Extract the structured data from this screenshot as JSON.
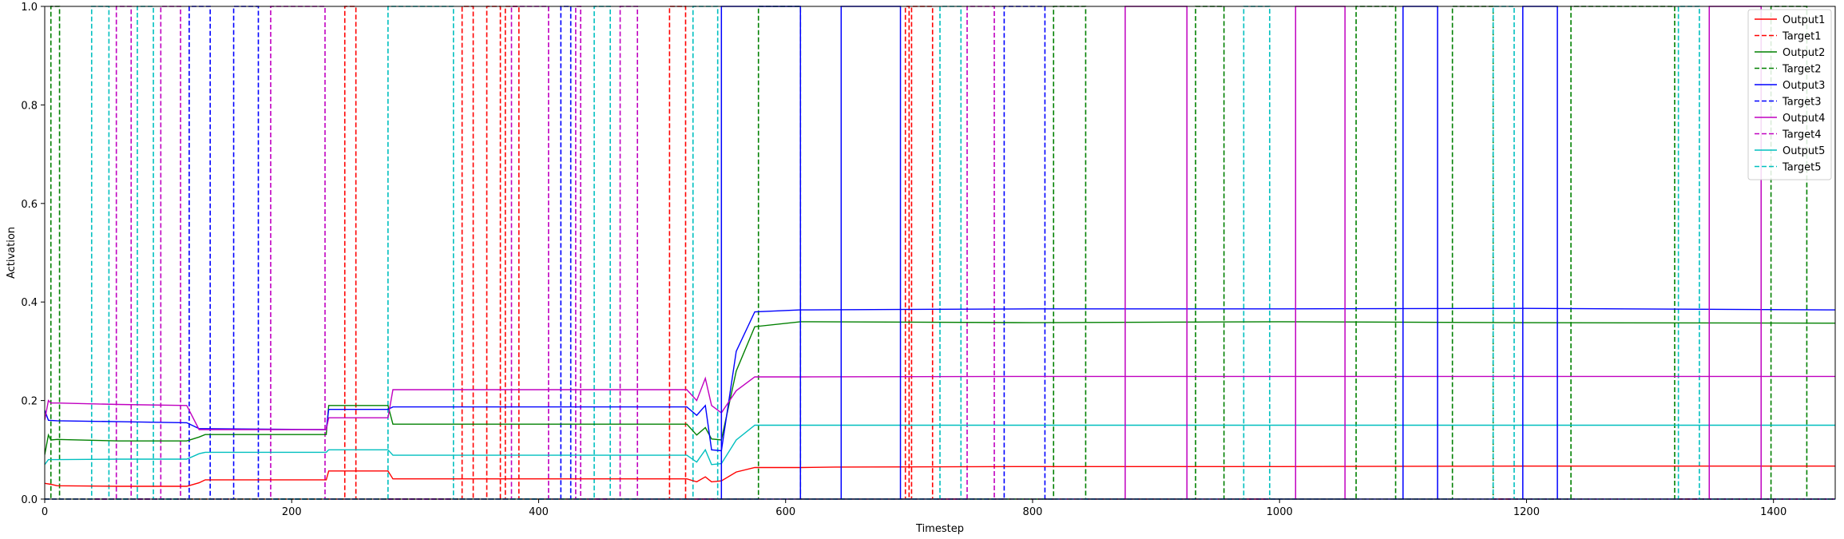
{
  "chart_data": {
    "type": "line",
    "xlabel": "Timestep",
    "ylabel": "Activation",
    "xlim": [
      0,
      1450
    ],
    "ylim": [
      0,
      1.0
    ],
    "xticks": [
      0,
      200,
      400,
      600,
      800,
      1000,
      1200,
      1400
    ],
    "yticks": [
      0.0,
      0.2,
      0.4,
      0.6,
      0.8,
      1.0
    ],
    "xtick_labels": [
      "0",
      "200",
      "400",
      "600",
      "800",
      "1000",
      "1200",
      "1400"
    ],
    "ytick_labels": [
      "0.0",
      "0.2",
      "0.4",
      "0.6",
      "0.8",
      "1.0"
    ],
    "legend_position": "top-right",
    "series": [
      {
        "name": "Output1",
        "color": "#ff0000",
        "style": "solid",
        "points": [
          [
            0,
            0.032
          ],
          [
            5,
            0.03
          ],
          [
            10,
            0.027
          ],
          [
            60,
            0.026
          ],
          [
            115,
            0.026
          ],
          [
            125,
            0.033
          ],
          [
            130,
            0.039
          ],
          [
            228,
            0.039
          ],
          [
            230,
            0.057
          ],
          [
            278,
            0.057
          ],
          [
            282,
            0.041
          ],
          [
            520,
            0.041
          ],
          [
            528,
            0.035
          ],
          [
            535,
            0.045
          ],
          [
            540,
            0.035
          ],
          [
            548,
            0.037
          ],
          [
            560,
            0.055
          ],
          [
            575,
            0.064
          ],
          [
            612,
            0.064
          ],
          [
            640,
            0.065
          ],
          [
            800,
            0.066
          ],
          [
            1000,
            0.066
          ],
          [
            1200,
            0.067
          ],
          [
            1450,
            0.067
          ]
        ]
      },
      {
        "name": "Target1",
        "color": "#ff0000",
        "style": "dashed",
        "pulses": [
          [
            243,
            252
          ],
          [
            338,
            347
          ],
          [
            358,
            369
          ],
          [
            373,
            384
          ],
          [
            506,
            519
          ],
          [
            697,
            700
          ],
          [
            702,
            719
          ]
        ]
      },
      {
        "name": "Output2",
        "color": "#008000",
        "style": "solid",
        "points": [
          [
            0,
            0.09
          ],
          [
            3,
            0.13
          ],
          [
            5,
            0.12
          ],
          [
            10,
            0.121
          ],
          [
            60,
            0.118
          ],
          [
            115,
            0.118
          ],
          [
            125,
            0.126
          ],
          [
            130,
            0.131
          ],
          [
            228,
            0.131
          ],
          [
            230,
            0.19
          ],
          [
            278,
            0.19
          ],
          [
            282,
            0.152
          ],
          [
            520,
            0.152
          ],
          [
            528,
            0.13
          ],
          [
            535,
            0.145
          ],
          [
            540,
            0.122
          ],
          [
            548,
            0.12
          ],
          [
            560,
            0.26
          ],
          [
            575,
            0.35
          ],
          [
            612,
            0.36
          ],
          [
            800,
            0.358
          ],
          [
            1000,
            0.36
          ],
          [
            1200,
            0.358
          ],
          [
            1450,
            0.357
          ]
        ]
      },
      {
        "name": "Target2",
        "color": "#008000",
        "style": "dashed",
        "pulses": [
          [
            5,
            12
          ],
          [
            578,
            612
          ],
          [
            817,
            843
          ],
          [
            932,
            955
          ],
          [
            1062,
            1094
          ],
          [
            1140,
            1173
          ],
          [
            1236,
            1320
          ],
          [
            1398,
            1427
          ]
        ]
      },
      {
        "name": "Output3",
        "color": "#0000ff",
        "style": "solid",
        "points": [
          [
            0,
            0.18
          ],
          [
            3,
            0.16
          ],
          [
            10,
            0.159
          ],
          [
            60,
            0.157
          ],
          [
            115,
            0.155
          ],
          [
            125,
            0.143
          ],
          [
            130,
            0.143
          ],
          [
            228,
            0.141
          ],
          [
            230,
            0.182
          ],
          [
            278,
            0.182
          ],
          [
            282,
            0.187
          ],
          [
            520,
            0.187
          ],
          [
            528,
            0.17
          ],
          [
            535,
            0.19
          ],
          [
            540,
            0.1
          ],
          [
            548,
            0.098
          ],
          [
            560,
            0.3
          ],
          [
            575,
            0.38
          ],
          [
            612,
            0.384
          ],
          [
            800,
            0.386
          ],
          [
            1000,
            0.386
          ],
          [
            1200,
            0.387
          ],
          [
            1450,
            0.384
          ]
        ]
      },
      {
        "name": "Target3",
        "color": "#0000ff",
        "style": "dashed",
        "pulses": [
          [
            117,
            134
          ],
          [
            153,
            173
          ],
          [
            418,
            426
          ],
          [
            777,
            810
          ]
        ]
      },
      {
        "name": "Output4",
        "color": "#c000c0",
        "style": "solid",
        "points": [
          [
            0,
            0.16
          ],
          [
            3,
            0.2
          ],
          [
            5,
            0.195
          ],
          [
            10,
            0.195
          ],
          [
            60,
            0.192
          ],
          [
            115,
            0.19
          ],
          [
            125,
            0.141
          ],
          [
            130,
            0.141
          ],
          [
            228,
            0.141
          ],
          [
            230,
            0.165
          ],
          [
            278,
            0.165
          ],
          [
            282,
            0.222
          ],
          [
            520,
            0.222
          ],
          [
            528,
            0.2
          ],
          [
            535,
            0.245
          ],
          [
            540,
            0.19
          ],
          [
            548,
            0.175
          ],
          [
            560,
            0.22
          ],
          [
            575,
            0.248
          ],
          [
            612,
            0.248
          ],
          [
            800,
            0.249
          ],
          [
            1000,
            0.249
          ],
          [
            1200,
            0.249
          ],
          [
            1450,
            0.249
          ]
        ]
      },
      {
        "name": "Target4",
        "color": "#c000c0",
        "style": "dashed",
        "pulses": [
          [
            58,
            70
          ],
          [
            94,
            110
          ],
          [
            183,
            227
          ],
          [
            378,
            408
          ],
          [
            430,
            434
          ],
          [
            466,
            480
          ],
          [
            747,
            769
          ]
        ]
      },
      {
        "name": "Output5",
        "color": "#00bfbf",
        "style": "solid",
        "points": [
          [
            0,
            0.07
          ],
          [
            3,
            0.08
          ],
          [
            10,
            0.08
          ],
          [
            60,
            0.081
          ],
          [
            115,
            0.081
          ],
          [
            125,
            0.092
          ],
          [
            130,
            0.095
          ],
          [
            228,
            0.095
          ],
          [
            230,
            0.1
          ],
          [
            278,
            0.1
          ],
          [
            282,
            0.089
          ],
          [
            520,
            0.089
          ],
          [
            528,
            0.075
          ],
          [
            535,
            0.1
          ],
          [
            540,
            0.07
          ],
          [
            548,
            0.072
          ],
          [
            560,
            0.12
          ],
          [
            575,
            0.15
          ],
          [
            612,
            0.15
          ],
          [
            800,
            0.15
          ],
          [
            1000,
            0.15
          ],
          [
            1200,
            0.15
          ],
          [
            1450,
            0.15
          ]
        ]
      },
      {
        "name": "Target5",
        "color": "#00bfbf",
        "style": "dashed",
        "pulses": [
          [
            38,
            52
          ],
          [
            75,
            88
          ],
          [
            278,
            331
          ],
          [
            445,
            458
          ],
          [
            525,
            545
          ],
          [
            725,
            742
          ],
          [
            971,
            992
          ],
          [
            1173,
            1190
          ],
          [
            1323,
            1340
          ]
        ]
      }
    ],
    "output_plateaus": [
      [
        548,
        612
      ],
      [
        645,
        693
      ],
      [
        875,
        925
      ],
      [
        1013,
        1053
      ],
      [
        1100,
        1128
      ],
      [
        1197,
        1225
      ],
      [
        1348,
        1390
      ]
    ]
  }
}
